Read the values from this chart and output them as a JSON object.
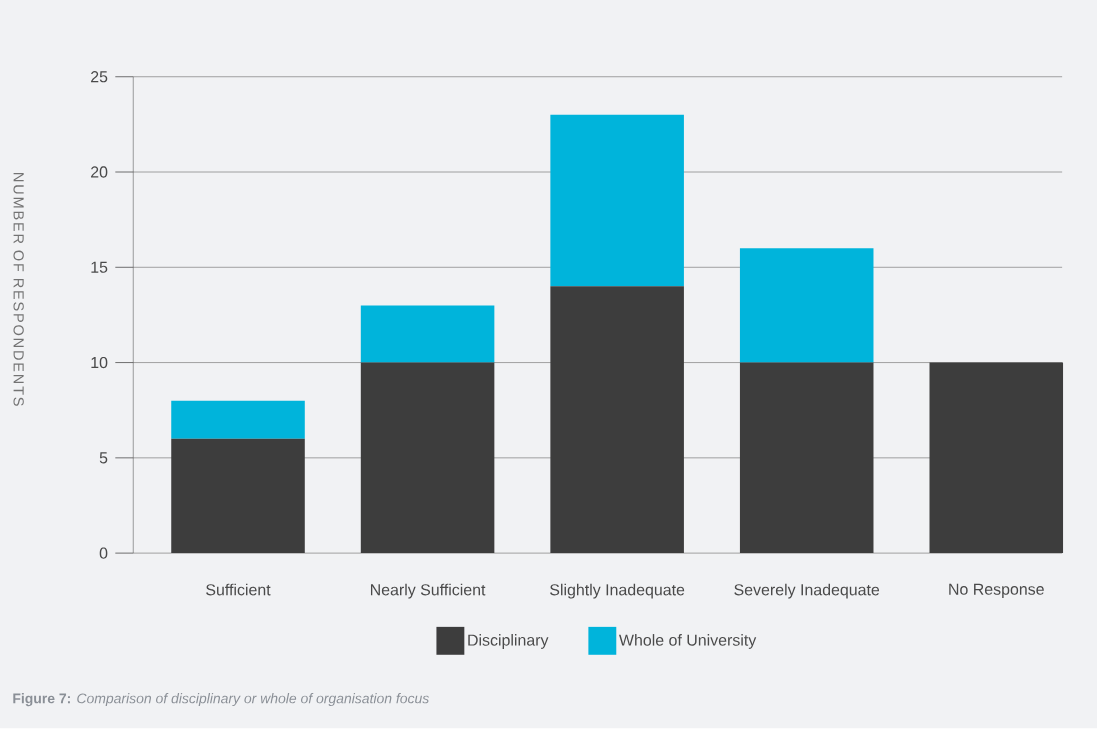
{
  "chart_data": {
    "type": "bar",
    "stacked": true,
    "categories": [
      "Sufficient",
      "Nearly Sufficient",
      "Slightly Inadequate",
      "Severely Inadequate",
      "No Response"
    ],
    "series": [
      {
        "name": "Disciplinary",
        "color": "#3d3d3d",
        "values": [
          6,
          10,
          14,
          10,
          10
        ]
      },
      {
        "name": "Whole of University",
        "color": "#00b4db",
        "values": [
          2,
          3,
          9,
          6,
          0
        ]
      }
    ],
    "ylabel": "NUMBER OF RESPONDENTS",
    "ylim": [
      0,
      25
    ],
    "yticks": [
      0,
      5,
      10,
      15,
      20,
      25
    ],
    "grid": "y",
    "legend": "bottom",
    "annotations": [
      "**Figure 7:** *Comparison of disciplinary or whole of organisation focus*"
    ]
  }
}
